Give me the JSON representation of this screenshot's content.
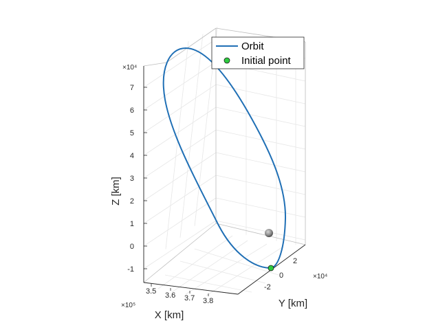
{
  "chart_data": {
    "type": "line",
    "title": "",
    "xlabel": "X [km]",
    "ylabel": "Y [km]",
    "zlabel": "Z [km]",
    "x_exponent_label": "×10⁵",
    "y_exponent_label": "×10⁴",
    "z_exponent_label": "×10⁴",
    "x_ticks": [
      "3.5",
      "3.6",
      "3.7",
      "3.8"
    ],
    "y_ticks": [
      "-2",
      "0",
      "2"
    ],
    "z_ticks": [
      "-1",
      "0",
      "1",
      "2",
      "3",
      "4",
      "5",
      "6",
      "7"
    ],
    "zlim": [
      -1.3,
      8.0
    ],
    "grid": true,
    "legend_position": "top-right",
    "colors": {
      "orbit": "#1f6fb5",
      "initial_point": "#2ecc40",
      "moon": "#7a7a7a",
      "grid": "#e6e6e6",
      "box": "#262626"
    },
    "series": [
      {
        "name": "Orbit",
        "kind": "line",
        "description_points_z_x1e4": [
          -0.9,
          -0.7,
          0.8,
          2.6,
          4.5,
          6.3,
          7.3,
          7.6,
          7.2,
          5.9,
          4.0,
          2.0,
          0.3,
          -0.6,
          -0.9
        ]
      },
      {
        "name": "Initial point",
        "kind": "marker",
        "z_x1e4": -0.95
      }
    ]
  }
}
